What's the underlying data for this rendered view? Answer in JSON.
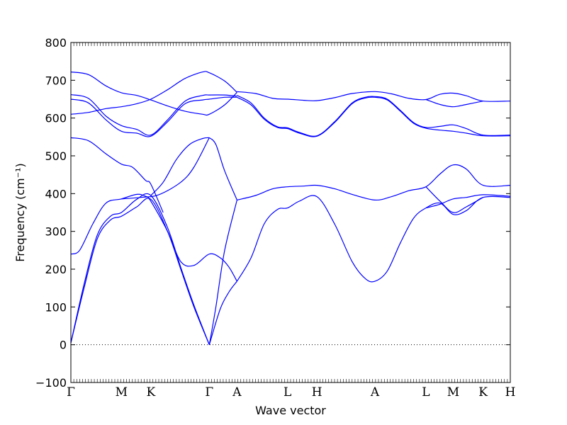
{
  "chart_data": {
    "type": "line",
    "title": "",
    "xlabel": "Wave vector",
    "ylabel": "Frequency (cm⁻¹)",
    "ylim": [
      -100,
      800
    ],
    "xlim": [
      0,
      1
    ],
    "yticks": [
      -100,
      0,
      100,
      200,
      300,
      400,
      500,
      600,
      700,
      800
    ],
    "ytick_labels": [
      "−100",
      "0",
      "100",
      "200",
      "300",
      "400",
      "500",
      "600",
      "700",
      "800"
    ],
    "zero_line": true,
    "grid": false,
    "line_color": "#0000ff",
    "kpoints": [
      {
        "label": "Γ",
        "x": 0.0
      },
      {
        "label": "M",
        "x": 0.115
      },
      {
        "label": "K",
        "x": 0.182
      },
      {
        "label": "Γ",
        "x": 0.315
      },
      {
        "label": "A",
        "x": 0.378
      },
      {
        "label": "L",
        "x": 0.493
      },
      {
        "label": "H",
        "x": 0.56
      },
      {
        "label": "A",
        "x": 0.692
      },
      {
        "label": "L",
        "x": 0.808
      },
      {
        "label": "M",
        "x": 0.87
      },
      {
        "label": "K",
        "x": 0.938
      },
      {
        "label": "H",
        "x": 1.0
      }
    ],
    "bands": [
      {
        "points": [
          [
            0.0,
            5
          ],
          [
            0.03,
            150
          ],
          [
            0.06,
            280
          ],
          [
            0.09,
            330
          ],
          [
            0.115,
            340
          ],
          [
            0.15,
            365
          ],
          [
            0.182,
            385
          ],
          [
            0.22,
            300
          ],
          [
            0.25,
            200
          ],
          [
            0.28,
            100
          ],
          [
            0.315,
            0
          ]
        ]
      },
      {
        "points": [
          [
            0.0,
            5
          ],
          [
            0.03,
            160
          ],
          [
            0.06,
            290
          ],
          [
            0.09,
            340
          ],
          [
            0.115,
            350
          ],
          [
            0.15,
            385
          ],
          [
            0.182,
            395
          ],
          [
            0.22,
            310
          ],
          [
            0.25,
            205
          ],
          [
            0.28,
            105
          ],
          [
            0.315,
            0
          ]
        ]
      },
      {
        "points": [
          [
            0.0,
            240
          ],
          [
            0.02,
            250
          ],
          [
            0.05,
            320
          ],
          [
            0.08,
            375
          ],
          [
            0.115,
            386
          ],
          [
            0.15,
            398
          ],
          [
            0.17,
            393
          ],
          [
            0.182,
            380
          ],
          [
            0.22,
            300
          ],
          [
            0.25,
            220
          ],
          [
            0.28,
            210
          ],
          [
            0.315,
            240
          ],
          [
            0.34,
            230
          ],
          [
            0.36,
            205
          ],
          [
            0.378,
            168
          ]
        ]
      },
      {
        "points": [
          [
            0.115,
            386
          ],
          [
            0.16,
            390
          ],
          [
            0.2,
            397
          ],
          [
            0.25,
            430
          ],
          [
            0.28,
            470
          ],
          [
            0.315,
            548
          ]
        ]
      },
      {
        "points": [
          [
            0.0,
            548
          ],
          [
            0.04,
            540
          ],
          [
            0.08,
            505
          ],
          [
            0.115,
            478
          ],
          [
            0.14,
            470
          ],
          [
            0.17,
            435
          ],
          [
            0.182,
            425
          ],
          [
            0.21,
            350
          ]
        ]
      },
      {
        "points": [
          [
            0.315,
            0
          ],
          [
            0.34,
            95
          ],
          [
            0.36,
            140
          ],
          [
            0.378,
            168
          ]
        ]
      },
      {
        "points": [
          [
            0.315,
            0
          ],
          [
            0.33,
            100
          ],
          [
            0.35,
            250
          ],
          [
            0.378,
            383
          ]
        ]
      },
      {
        "points": [
          [
            0.315,
            548
          ],
          [
            0.33,
            530
          ],
          [
            0.35,
            460
          ],
          [
            0.378,
            383
          ]
        ]
      },
      {
        "points": [
          [
            0.182,
            395
          ],
          [
            0.21,
            430
          ],
          [
            0.24,
            490
          ],
          [
            0.27,
            530
          ],
          [
            0.3,
            546
          ],
          [
            0.315,
            548
          ]
        ]
      },
      {
        "points": [
          [
            0.378,
            168
          ],
          [
            0.41,
            230
          ],
          [
            0.44,
            320
          ],
          [
            0.47,
            358
          ],
          [
            0.493,
            362
          ],
          [
            0.52,
            380
          ],
          [
            0.56,
            392
          ],
          [
            0.6,
            320
          ],
          [
            0.64,
            220
          ],
          [
            0.67,
            175
          ],
          [
            0.692,
            168
          ],
          [
            0.72,
            195
          ],
          [
            0.75,
            270
          ],
          [
            0.78,
            335
          ],
          [
            0.808,
            362
          ],
          [
            0.84,
            375
          ],
          [
            0.87,
            345
          ],
          [
            0.9,
            355
          ],
          [
            0.938,
            390
          ],
          [
            1.0,
            390
          ]
        ]
      },
      {
        "points": [
          [
            0.378,
            383
          ],
          [
            0.42,
            395
          ],
          [
            0.46,
            413
          ],
          [
            0.493,
            418
          ],
          [
            0.53,
            420
          ],
          [
            0.56,
            422
          ],
          [
            0.6,
            413
          ],
          [
            0.64,
            398
          ],
          [
            0.692,
            383
          ],
          [
            0.73,
            392
          ],
          [
            0.77,
            408
          ],
          [
            0.808,
            418
          ],
          [
            0.84,
            452
          ],
          [
            0.87,
            476
          ],
          [
            0.9,
            465
          ],
          [
            0.938,
            422
          ],
          [
            1.0,
            422
          ]
        ]
      },
      {
        "points": [
          [
            0.808,
            362
          ],
          [
            0.84,
            372
          ],
          [
            0.87,
            386
          ],
          [
            0.9,
            390
          ],
          [
            0.938,
            397
          ],
          [
            1.0,
            393
          ]
        ]
      },
      {
        "points": [
          [
            0.808,
            418
          ],
          [
            0.84,
            380
          ],
          [
            0.87,
            350
          ],
          [
            0.9,
            365
          ],
          [
            0.938,
            390
          ]
        ]
      },
      {
        "points": [
          [
            0.0,
            610
          ],
          [
            0.04,
            615
          ],
          [
            0.08,
            625
          ],
          [
            0.115,
            630
          ],
          [
            0.15,
            638
          ],
          [
            0.182,
            650
          ],
          [
            0.22,
            675
          ],
          [
            0.26,
            705
          ],
          [
            0.3,
            722
          ],
          [
            0.315,
            720
          ],
          [
            0.35,
            698
          ],
          [
            0.378,
            668
          ]
        ]
      },
      {
        "points": [
          [
            0.0,
            722
          ],
          [
            0.04,
            715
          ],
          [
            0.08,
            685
          ],
          [
            0.115,
            667
          ],
          [
            0.15,
            660
          ],
          [
            0.182,
            648
          ],
          [
            0.22,
            632
          ],
          [
            0.26,
            618
          ],
          [
            0.3,
            610
          ],
          [
            0.315,
            610
          ],
          [
            0.35,
            635
          ],
          [
            0.378,
            668
          ]
        ]
      },
      {
        "points": [
          [
            0.0,
            662
          ],
          [
            0.04,
            652
          ],
          [
            0.08,
            605
          ],
          [
            0.115,
            580
          ],
          [
            0.15,
            570
          ],
          [
            0.182,
            555
          ],
          [
            0.22,
            595
          ],
          [
            0.26,
            645
          ],
          [
            0.3,
            660
          ],
          [
            0.315,
            661
          ],
          [
            0.35,
            661
          ],
          [
            0.378,
            658
          ]
        ]
      },
      {
        "points": [
          [
            0.0,
            650
          ],
          [
            0.04,
            640
          ],
          [
            0.08,
            595
          ],
          [
            0.115,
            565
          ],
          [
            0.15,
            560
          ],
          [
            0.182,
            552
          ],
          [
            0.22,
            590
          ],
          [
            0.26,
            638
          ],
          [
            0.3,
            648
          ],
          [
            0.315,
            650
          ],
          [
            0.35,
            655
          ],
          [
            0.378,
            655
          ]
        ]
      },
      {
        "points": [
          [
            0.378,
            670
          ],
          [
            0.42,
            665
          ],
          [
            0.46,
            652
          ],
          [
            0.493,
            650
          ],
          [
            0.53,
            647
          ],
          [
            0.56,
            646
          ],
          [
            0.6,
            654
          ],
          [
            0.64,
            665
          ],
          [
            0.692,
            670
          ],
          [
            0.73,
            664
          ],
          [
            0.77,
            652
          ],
          [
            0.808,
            649
          ],
          [
            0.84,
            663
          ],
          [
            0.87,
            666
          ],
          [
            0.9,
            659
          ],
          [
            0.938,
            645
          ],
          [
            1.0,
            645
          ]
        ]
      },
      {
        "points": [
          [
            0.808,
            649
          ],
          [
            0.84,
            636
          ],
          [
            0.87,
            630
          ],
          [
            0.9,
            636
          ],
          [
            0.938,
            645
          ]
        ]
      },
      {
        "points": [
          [
            0.378,
            660
          ],
          [
            0.41,
            640
          ],
          [
            0.44,
            600
          ],
          [
            0.47,
            577
          ],
          [
            0.493,
            574
          ],
          [
            0.52,
            562
          ],
          [
            0.56,
            553
          ],
          [
            0.6,
            590
          ],
          [
            0.64,
            640
          ],
          [
            0.67,
            655
          ],
          [
            0.692,
            657
          ],
          [
            0.72,
            650
          ],
          [
            0.75,
            620
          ],
          [
            0.78,
            588
          ],
          [
            0.808,
            575
          ],
          [
            0.84,
            578
          ],
          [
            0.87,
            582
          ],
          [
            0.9,
            572
          ],
          [
            0.938,
            555
          ],
          [
            1.0,
            555
          ]
        ]
      },
      {
        "points": [
          [
            0.378,
            655
          ],
          [
            0.41,
            635
          ],
          [
            0.44,
            597
          ],
          [
            0.47,
            575
          ],
          [
            0.493,
            572
          ],
          [
            0.52,
            560
          ],
          [
            0.56,
            552
          ],
          [
            0.6,
            588
          ],
          [
            0.64,
            638
          ],
          [
            0.67,
            653
          ],
          [
            0.692,
            655
          ],
          [
            0.72,
            648
          ],
          [
            0.75,
            618
          ],
          [
            0.78,
            586
          ],
          [
            0.808,
            573
          ],
          [
            0.84,
            568
          ],
          [
            0.87,
            565
          ],
          [
            0.9,
            560
          ],
          [
            0.938,
            553
          ],
          [
            1.0,
            553
          ]
        ]
      }
    ]
  }
}
